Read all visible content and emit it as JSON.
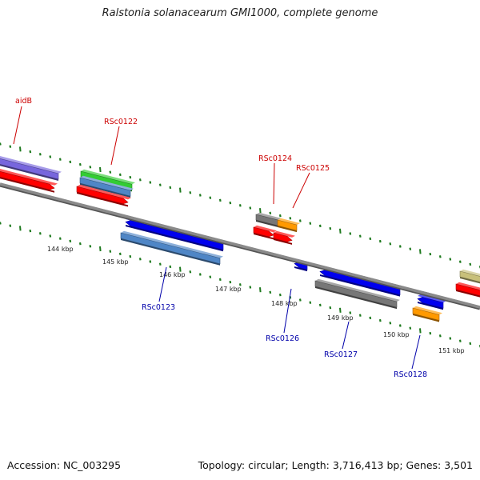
{
  "title": "Ralstonia solanacearum GMI1000, complete genome",
  "footer": {
    "accession": "Accession: NC_003295",
    "stats": "Topology: circular; Length: 3,716,413 bp; Genes: 3,501"
  },
  "colors": {
    "backbone": "#8a8a8a",
    "tick": "#1e7a1e",
    "label_top": "#cc0000",
    "label_bottom": "#0000aa",
    "red": "#ff0000",
    "blue": "#0000ee",
    "steel": "#4f86c6",
    "green": "#33cc33",
    "purple": "#7766dd",
    "gray": "#777777",
    "orange": "#ff9900",
    "khaki": "#c8c07a"
  },
  "scale_labels": [
    "144 kbp",
    "145 kbp",
    "146 kbp",
    "147 kbp",
    "148 kbp",
    "149 kbp",
    "150 kbp",
    "151 kbp"
  ],
  "gene_labels": [
    {
      "text": "aidB",
      "side": "top"
    },
    {
      "text": "RSc0122",
      "side": "top"
    },
    {
      "text": "RSc0124",
      "side": "top"
    },
    {
      "text": "RSc0125",
      "side": "top"
    },
    {
      "text": "RSc0123",
      "side": "bottom"
    },
    {
      "text": "RSc0126",
      "side": "bottom"
    },
    {
      "text": "RSc0127",
      "side": "bottom"
    },
    {
      "text": "RSc0128",
      "side": "bottom"
    }
  ]
}
